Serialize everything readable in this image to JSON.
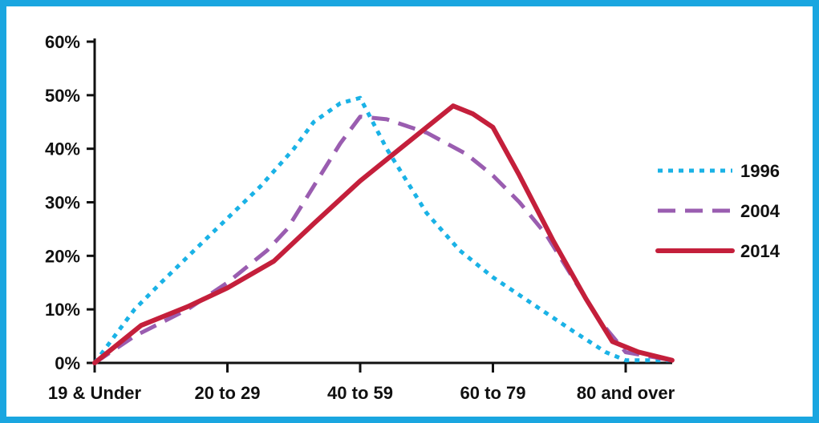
{
  "chart_data": {
    "type": "line",
    "title": "",
    "xlabel": "",
    "ylabel": "",
    "categories": [
      "19 & Under",
      "20 to 29",
      "40 to 59",
      "60 to 79",
      "80 and over"
    ],
    "y_ticks": [
      "0%",
      "10%",
      "20%",
      "30%",
      "40%",
      "50%",
      "60%"
    ],
    "ylim": [
      0,
      60
    ],
    "grid": false,
    "legend_position": "right",
    "series": [
      {
        "name": "1996",
        "style": "dotted",
        "color": "#1ab2e6",
        "points": [
          [
            0,
            0
          ],
          [
            0.15,
            5
          ],
          [
            0.3,
            10
          ],
          [
            0.5,
            15
          ],
          [
            0.75,
            21
          ],
          [
            1,
            27
          ],
          [
            1.25,
            33
          ],
          [
            1.5,
            40
          ],
          [
            1.65,
            45
          ],
          [
            1.85,
            48.5
          ],
          [
            2,
            49.5
          ],
          [
            2.2,
            40
          ],
          [
            2.5,
            28
          ],
          [
            2.75,
            21
          ],
          [
            3,
            16
          ],
          [
            3.3,
            11
          ],
          [
            3.6,
            6
          ],
          [
            3.85,
            2
          ],
          [
            4,
            0.5
          ],
          [
            4.35,
            0.5
          ]
        ]
      },
      {
        "name": "2004",
        "style": "dashed",
        "color": "#9a5db0",
        "points": [
          [
            0,
            0
          ],
          [
            0.3,
            5
          ],
          [
            0.7,
            10
          ],
          [
            1,
            15
          ],
          [
            1.3,
            21
          ],
          [
            1.45,
            25
          ],
          [
            1.7,
            35
          ],
          [
            1.85,
            41
          ],
          [
            2,
            46
          ],
          [
            2.2,
            45.5
          ],
          [
            2.5,
            43
          ],
          [
            2.8,
            39
          ],
          [
            3,
            35
          ],
          [
            3.2,
            30
          ],
          [
            3.4,
            24
          ],
          [
            3.6,
            16
          ],
          [
            3.8,
            8
          ],
          [
            4,
            2
          ],
          [
            4.35,
            0.5
          ]
        ]
      },
      {
        "name": "2014",
        "style": "solid",
        "color": "#c41f3b",
        "points": [
          [
            0,
            0
          ],
          [
            0.35,
            7
          ],
          [
            0.7,
            10.5
          ],
          [
            1,
            14
          ],
          [
            1.35,
            19
          ],
          [
            1.65,
            26
          ],
          [
            2,
            34
          ],
          [
            2.35,
            41
          ],
          [
            2.7,
            48
          ],
          [
            2.85,
            46.5
          ],
          [
            3,
            44
          ],
          [
            3.2,
            35
          ],
          [
            3.45,
            23
          ],
          [
            3.7,
            12
          ],
          [
            3.9,
            4
          ],
          [
            4.1,
            2
          ],
          [
            4.35,
            0.5
          ]
        ]
      }
    ]
  }
}
